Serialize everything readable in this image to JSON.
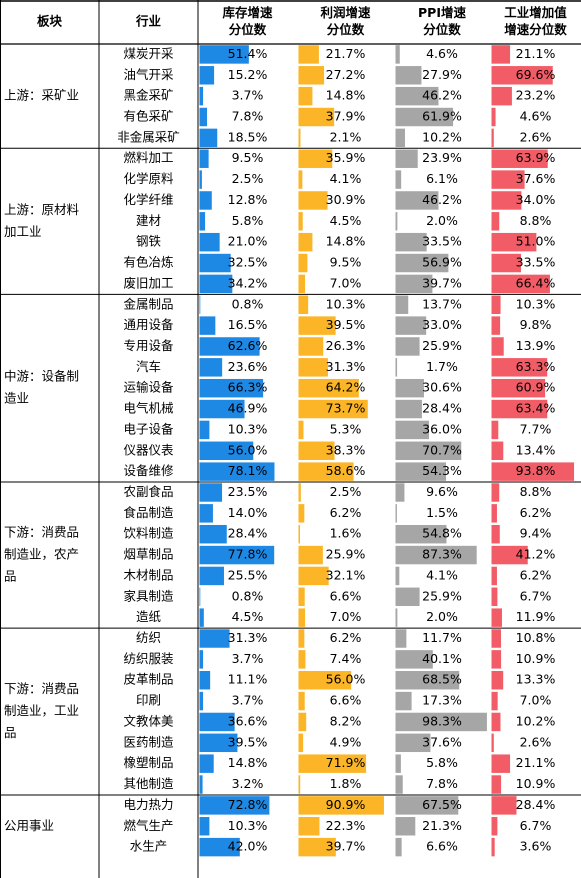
{
  "chart_data": {
    "type": "table",
    "columns": [
      "板块",
      "行业",
      "库存增速分位数",
      "利润增速分位数",
      "PPI增速分位数",
      "工业增加值增速分位数"
    ],
    "header_lines": {
      "c0": [
        "板块"
      ],
      "c1": [
        "行业"
      ],
      "c2": [
        "库存增速",
        "分位数"
      ],
      "c3": [
        "利润增速",
        "分位数"
      ],
      "c4": [
        "PPI增速",
        "分位数"
      ],
      "c5": [
        "工业增加值",
        "增速分位数"
      ]
    },
    "colors": {
      "inventory": "#1e88e5",
      "profit": "#fbb526",
      "ppi": "#a6a6a6",
      "value_added": "#f25c66",
      "grid": "#000000"
    },
    "sections": [
      {
        "label_lines": [
          "上游：采矿业"
        ],
        "rows": [
          {
            "industry": "煤炭开采",
            "inventory": "51.4%",
            "profit": "21.7%",
            "ppi": "4.6%",
            "value_added": "21.1%"
          },
          {
            "industry": "油气开采",
            "inventory": "15.2%",
            "profit": "27.2%",
            "ppi": "27.9%",
            "value_added": "69.6%"
          },
          {
            "industry": "黑金采矿",
            "inventory": "3.7%",
            "profit": "14.8%",
            "ppi": "46.2%",
            "value_added": "23.2%"
          },
          {
            "industry": "有色采矿",
            "inventory": "7.8%",
            "profit": "37.9%",
            "ppi": "61.9%",
            "value_added": "4.6%"
          },
          {
            "industry": "非金属采矿",
            "inventory": "18.5%",
            "profit": "2.1%",
            "ppi": "10.2%",
            "value_added": "2.6%"
          }
        ]
      },
      {
        "label_lines": [
          "上游：原材料",
          "加工业"
        ],
        "rows": [
          {
            "industry": "燃料加工",
            "inventory": "9.5%",
            "profit": "35.9%",
            "ppi": "23.9%",
            "value_added": "63.9%"
          },
          {
            "industry": "化学原料",
            "inventory": "2.5%",
            "profit": "4.1%",
            "ppi": "6.1%",
            "value_added": "37.6%"
          },
          {
            "industry": "化学纤维",
            "inventory": "12.8%",
            "profit": "30.9%",
            "ppi": "46.2%",
            "value_added": "34.0%"
          },
          {
            "industry": "建材",
            "inventory": "5.8%",
            "profit": "4.5%",
            "ppi": "2.0%",
            "value_added": "8.8%"
          },
          {
            "industry": "钢铁",
            "inventory": "21.0%",
            "profit": "14.8%",
            "ppi": "33.5%",
            "value_added": "51.0%"
          },
          {
            "industry": "有色冶炼",
            "inventory": "32.5%",
            "profit": "9.5%",
            "ppi": "56.9%",
            "value_added": "33.5%"
          },
          {
            "industry": "废旧加工",
            "inventory": "34.2%",
            "profit": "7.0%",
            "ppi": "39.7%",
            "value_added": "66.4%"
          }
        ]
      },
      {
        "label_lines": [
          "中游：设备制",
          "造业"
        ],
        "rows": [
          {
            "industry": "金属制品",
            "inventory": "0.8%",
            "profit": "10.3%",
            "ppi": "13.7%",
            "value_added": "10.3%"
          },
          {
            "industry": "通用设备",
            "inventory": "16.5%",
            "profit": "39.5%",
            "ppi": "33.0%",
            "value_added": "9.8%"
          },
          {
            "industry": "专用设备",
            "inventory": "62.6%",
            "profit": "26.3%",
            "ppi": "25.9%",
            "value_added": "13.9%"
          },
          {
            "industry": "汽车",
            "inventory": "23.6%",
            "profit": "31.3%",
            "ppi": "1.7%",
            "value_added": "63.3%"
          },
          {
            "industry": "运输设备",
            "inventory": "66.3%",
            "profit": "64.2%",
            "ppi": "30.6%",
            "value_added": "60.9%"
          },
          {
            "industry": "电气机械",
            "inventory": "46.9%",
            "profit": "73.7%",
            "ppi": "28.4%",
            "value_added": "63.4%"
          },
          {
            "industry": "电子设备",
            "inventory": "10.3%",
            "profit": "5.3%",
            "ppi": "36.0%",
            "value_added": "7.7%"
          },
          {
            "industry": "仪器仪表",
            "inventory": "56.0%",
            "profit": "38.3%",
            "ppi": "70.7%",
            "value_added": "13.4%"
          },
          {
            "industry": "设备维修",
            "inventory": "78.1%",
            "profit": "58.6%",
            "ppi": "54.3%",
            "value_added": "93.8%"
          }
        ]
      },
      {
        "label_lines": [
          "下游：消费品",
          "制造业，农产",
          "品"
        ],
        "rows": [
          {
            "industry": "农副食品",
            "inventory": "23.5%",
            "profit": "2.5%",
            "ppi": "9.6%",
            "value_added": "8.8%"
          },
          {
            "industry": "食品制造",
            "inventory": "14.0%",
            "profit": "6.2%",
            "ppi": "1.5%",
            "value_added": "6.2%"
          },
          {
            "industry": "饮料制造",
            "inventory": "28.4%",
            "profit": "1.6%",
            "ppi": "54.8%",
            "value_added": "9.4%"
          },
          {
            "industry": "烟草制品",
            "inventory": "77.8%",
            "profit": "25.9%",
            "ppi": "87.3%",
            "value_added": "41.2%"
          },
          {
            "industry": "木材制品",
            "inventory": "25.5%",
            "profit": "32.1%",
            "ppi": "4.1%",
            "value_added": "6.2%"
          },
          {
            "industry": "家具制造",
            "inventory": "0.8%",
            "profit": "6.6%",
            "ppi": "25.9%",
            "value_added": "6.7%"
          },
          {
            "industry": "造纸",
            "inventory": "4.5%",
            "profit": "7.0%",
            "ppi": "2.0%",
            "value_added": "11.9%"
          }
        ]
      },
      {
        "label_lines": [
          "下游：消费品",
          "制造业，工业",
          "品"
        ],
        "rows": [
          {
            "industry": "纺织",
            "inventory": "31.3%",
            "profit": "6.2%",
            "ppi": "11.7%",
            "value_added": "10.8%"
          },
          {
            "industry": "纺织服装",
            "inventory": "3.7%",
            "profit": "7.4%",
            "ppi": "40.1%",
            "value_added": "10.9%"
          },
          {
            "industry": "皮革制品",
            "inventory": "11.1%",
            "profit": "56.0%",
            "ppi": "68.5%",
            "value_added": "13.3%"
          },
          {
            "industry": "印刷",
            "inventory": "3.7%",
            "profit": "6.6%",
            "ppi": "17.3%",
            "value_added": "7.0%"
          },
          {
            "industry": "文教体美",
            "inventory": "36.6%",
            "profit": "8.2%",
            "ppi": "98.3%",
            "value_added": "10.2%"
          },
          {
            "industry": "医药制造",
            "inventory": "39.5%",
            "profit": "4.9%",
            "ppi": "37.6%",
            "value_added": "2.6%"
          },
          {
            "industry": "橡塑制品",
            "inventory": "14.8%",
            "profit": "71.9%",
            "ppi": "5.8%",
            "value_added": "21.1%"
          },
          {
            "industry": "其他制造",
            "inventory": "3.2%",
            "profit": "1.8%",
            "ppi": "7.8%",
            "value_added": "10.9%"
          }
        ]
      },
      {
        "label_lines": [
          "公用事业"
        ],
        "rows": [
          {
            "industry": "电力热力",
            "inventory": "72.8%",
            "profit": "90.9%",
            "ppi": "67.5%",
            "value_added": "28.4%"
          },
          {
            "industry": "燃气生产",
            "inventory": "10.3%",
            "profit": "22.3%",
            "ppi": "21.3%",
            "value_added": "6.7%"
          },
          {
            "industry": "水生产",
            "inventory": "42.0%",
            "profit": "39.7%",
            "ppi": "6.6%",
            "value_added": "3.6%"
          }
        ]
      }
    ]
  }
}
